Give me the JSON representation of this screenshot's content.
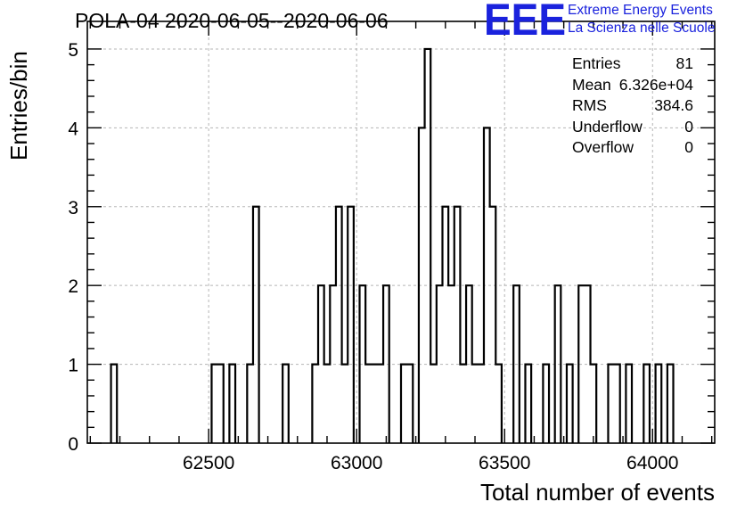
{
  "title": "POLA-04 2020-06-05--2020-06-06",
  "logo": {
    "mark": "EEE",
    "line1": "Extreme Energy Events",
    "line2": "La Scienza nelle Scuole",
    "color": "#1a22dd"
  },
  "stats": [
    {
      "label": "Entries",
      "value": "81"
    },
    {
      "label": "Mean",
      "value": "6.326e+04"
    },
    {
      "label": "RMS",
      "value": "384.6"
    },
    {
      "label": "Underflow",
      "value": "0"
    },
    {
      "label": "Overflow",
      "value": "0"
    }
  ],
  "chart_data": {
    "type": "bar",
    "histogram": true,
    "xlabel": "Total number of events",
    "ylabel": "Entries/bin",
    "xlim": [
      62090,
      64210
    ],
    "ylim": [
      0,
      5.35
    ],
    "bin_width": 20,
    "grid": true,
    "x_ticks": [
      62500,
      63000,
      63500,
      64000
    ],
    "y_ticks": [
      0,
      1,
      2,
      3,
      4,
      5
    ],
    "line_color": "#000000",
    "bins": [
      {
        "x": 62170,
        "y": 1
      },
      {
        "x": 62510,
        "y": 1
      },
      {
        "x": 62530,
        "y": 1
      },
      {
        "x": 62570,
        "y": 1
      },
      {
        "x": 62630,
        "y": 1
      },
      {
        "x": 62650,
        "y": 3
      },
      {
        "x": 62750,
        "y": 1
      },
      {
        "x": 62850,
        "y": 1
      },
      {
        "x": 62870,
        "y": 2
      },
      {
        "x": 62890,
        "y": 1
      },
      {
        "x": 62910,
        "y": 2
      },
      {
        "x": 62930,
        "y": 3
      },
      {
        "x": 62950,
        "y": 1
      },
      {
        "x": 62970,
        "y": 3
      },
      {
        "x": 63010,
        "y": 2
      },
      {
        "x": 63030,
        "y": 1
      },
      {
        "x": 63050,
        "y": 1
      },
      {
        "x": 63070,
        "y": 1
      },
      {
        "x": 63090,
        "y": 2
      },
      {
        "x": 63150,
        "y": 1
      },
      {
        "x": 63170,
        "y": 1
      },
      {
        "x": 63210,
        "y": 4
      },
      {
        "x": 63230,
        "y": 5
      },
      {
        "x": 63250,
        "y": 1
      },
      {
        "x": 63270,
        "y": 2
      },
      {
        "x": 63290,
        "y": 3
      },
      {
        "x": 63310,
        "y": 2
      },
      {
        "x": 63330,
        "y": 3
      },
      {
        "x": 63350,
        "y": 1
      },
      {
        "x": 63370,
        "y": 2
      },
      {
        "x": 63390,
        "y": 1
      },
      {
        "x": 63410,
        "y": 1
      },
      {
        "x": 63430,
        "y": 4
      },
      {
        "x": 63450,
        "y": 3
      },
      {
        "x": 63470,
        "y": 1
      },
      {
        "x": 63530,
        "y": 2
      },
      {
        "x": 63570,
        "y": 1
      },
      {
        "x": 63630,
        "y": 1
      },
      {
        "x": 63670,
        "y": 2
      },
      {
        "x": 63710,
        "y": 1
      },
      {
        "x": 63750,
        "y": 2
      },
      {
        "x": 63770,
        "y": 2
      },
      {
        "x": 63790,
        "y": 1
      },
      {
        "x": 63850,
        "y": 1
      },
      {
        "x": 63870,
        "y": 1
      },
      {
        "x": 63910,
        "y": 1
      },
      {
        "x": 63970,
        "y": 1
      },
      {
        "x": 64010,
        "y": 1
      },
      {
        "x": 64050,
        "y": 1
      }
    ]
  }
}
